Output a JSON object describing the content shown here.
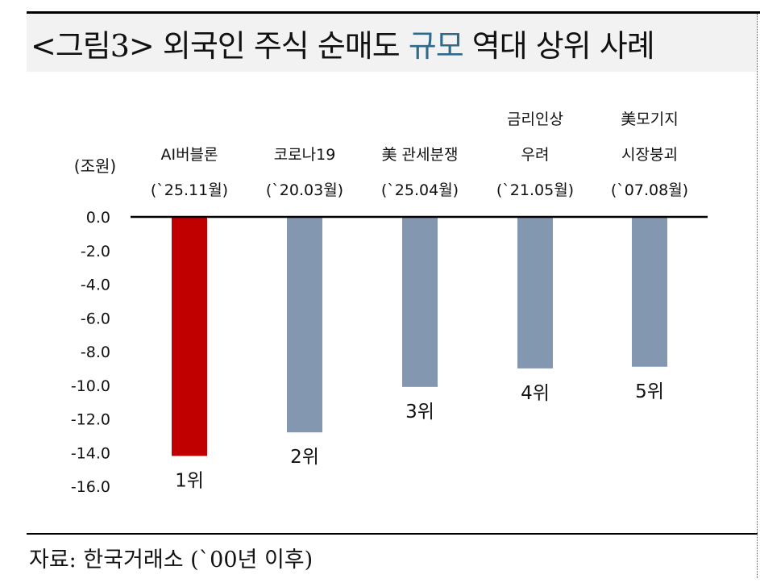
{
  "title": {
    "prefix": "<그림3> 외국인 주식 순매도 ",
    "highlight": "규모",
    "suffix": " 역대 상위 사례",
    "highlight_color": "#2e6b8a"
  },
  "source": "자료: 한국거래소 (`00년 이후)",
  "chart_data": {
    "type": "bar",
    "ylabel": "(조원)",
    "ylim": [
      -16,
      0
    ],
    "yticks": [
      "0.0",
      "-2.0",
      "-4.0",
      "-6.0",
      "-8.0",
      "-10.0",
      "-12.0",
      "-14.0",
      "-16.0"
    ],
    "grid": false,
    "categories": [
      [
        "AI버블론",
        "(`25.11월)"
      ],
      [
        "코로나19",
        "(`20.03월)"
      ],
      [
        "美 관세분쟁",
        "(`25.04월)"
      ],
      [
        "금리인상",
        "우려",
        "(`21.05월)"
      ],
      [
        "美모기지",
        "시장붕괴",
        "(`07.08월)"
      ]
    ],
    "values": [
      -14.2,
      -12.8,
      -10.1,
      -9.0,
      -8.9
    ],
    "data_labels": [
      "1위",
      "2위",
      "3위",
      "4위",
      "5위"
    ],
    "colors": [
      "#c00000",
      "#8497b0",
      "#8497b0",
      "#8497b0",
      "#8497b0"
    ]
  }
}
